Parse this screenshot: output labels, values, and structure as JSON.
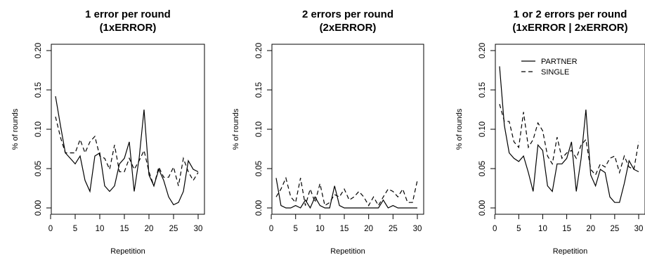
{
  "chart_data": [
    {
      "type": "line",
      "title": "1 error per round",
      "subtitle": "(1xERROR)",
      "xlabel": "Repetition",
      "ylabel": "% of rounds",
      "xlim": [
        1,
        30
      ],
      "ylim": [
        0,
        0.2
      ],
      "xticks": [
        "0",
        "5",
        "10",
        "15",
        "20",
        "25",
        "30"
      ],
      "yticks": [
        "0.00",
        "0.05",
        "0.10",
        "0.15",
        "0.20"
      ],
      "legend": null,
      "x": [
        1,
        2,
        3,
        4,
        5,
        6,
        7,
        8,
        9,
        10,
        11,
        12,
        13,
        14,
        15,
        16,
        17,
        18,
        19,
        20,
        21,
        22,
        23,
        24,
        25,
        26,
        27,
        28,
        29,
        30
      ],
      "series": [
        {
          "style": "solid",
          "values": [
            0.142,
            0.105,
            0.07,
            0.063,
            0.056,
            0.066,
            0.035,
            0.021,
            0.066,
            0.07,
            0.028,
            0.021,
            0.028,
            0.056,
            0.063,
            0.084,
            0.021,
            0.063,
            0.125,
            0.042,
            0.028,
            0.049,
            0.035,
            0.014,
            0.004,
            0.007,
            0.021,
            0.06,
            0.049,
            0.046
          ]
        },
        {
          "style": "dashed",
          "values": [
            0.116,
            0.09,
            0.07,
            0.07,
            0.07,
            0.087,
            0.07,
            0.084,
            0.091,
            0.066,
            0.063,
            0.049,
            0.08,
            0.046,
            0.046,
            0.063,
            0.049,
            0.06,
            0.073,
            0.046,
            0.028,
            0.052,
            0.039,
            0.039,
            0.052,
            0.028,
            0.063,
            0.046,
            0.035,
            0.045
          ]
        }
      ]
    },
    {
      "type": "line",
      "title": "2 errors per round",
      "subtitle": "(2xERROR)",
      "xlabel": "Repetition",
      "ylabel": "% of rounds",
      "xlim": [
        1,
        30
      ],
      "ylim": [
        0,
        0.2
      ],
      "xticks": [
        "0",
        "5",
        "10",
        "15",
        "20",
        "25",
        "30"
      ],
      "yticks": [
        "0.00",
        "0.05",
        "0.10",
        "0.15",
        "0.20"
      ],
      "legend": null,
      "x": [
        1,
        2,
        3,
        4,
        5,
        6,
        7,
        8,
        9,
        10,
        11,
        12,
        13,
        14,
        15,
        16,
        17,
        18,
        19,
        20,
        21,
        22,
        23,
        24,
        25,
        26,
        27,
        28,
        29,
        30
      ],
      "series": [
        {
          "style": "solid",
          "values": [
            0.038,
            0.003,
            0.0,
            0.0,
            0.003,
            0.0,
            0.01,
            0.0,
            0.014,
            0.003,
            0.0,
            0.0,
            0.028,
            0.003,
            0.0,
            0.0,
            0.0,
            0.0,
            0.0,
            0.0,
            0.0,
            0.0,
            0.01,
            0.0,
            0.003,
            0.0,
            0.0,
            0.0,
            0.0,
            0.0
          ]
        },
        {
          "style": "dashed",
          "values": [
            0.014,
            0.024,
            0.038,
            0.014,
            0.007,
            0.038,
            0.003,
            0.024,
            0.007,
            0.031,
            0.003,
            0.007,
            0.017,
            0.014,
            0.024,
            0.01,
            0.014,
            0.021,
            0.014,
            0.003,
            0.014,
            0.003,
            0.014,
            0.024,
            0.021,
            0.014,
            0.024,
            0.007,
            0.007,
            0.035
          ]
        }
      ]
    },
    {
      "type": "line",
      "title": "1 or 2 errors per round",
      "subtitle": "(1xERROR | 2xERROR)",
      "xlabel": "Repetition",
      "ylabel": "% of rounds",
      "xlim": [
        1,
        30
      ],
      "ylim": [
        0,
        0.2
      ],
      "xticks": [
        "0",
        "5",
        "10",
        "15",
        "20",
        "25",
        "30"
      ],
      "yticks": [
        "0.00",
        "0.05",
        "0.10",
        "0.15",
        "0.20"
      ],
      "legend": {
        "position": "top-right",
        "entries": [
          "PARTNER",
          "SINGLE"
        ]
      },
      "x": [
        1,
        2,
        3,
        4,
        5,
        6,
        7,
        8,
        9,
        10,
        11,
        12,
        13,
        14,
        15,
        16,
        17,
        18,
        19,
        20,
        21,
        22,
        23,
        24,
        25,
        26,
        27,
        28,
        29,
        30
      ],
      "series": [
        {
          "name": "PARTNER",
          "style": "solid",
          "values": [
            0.18,
            0.105,
            0.07,
            0.063,
            0.059,
            0.066,
            0.045,
            0.021,
            0.08,
            0.073,
            0.028,
            0.021,
            0.056,
            0.056,
            0.063,
            0.084,
            0.021,
            0.063,
            0.125,
            0.042,
            0.028,
            0.049,
            0.045,
            0.014,
            0.007,
            0.007,
            0.031,
            0.06,
            0.049,
            0.046
          ]
        },
        {
          "name": "SINGLE",
          "style": "dashed",
          "values": [
            0.132,
            0.11,
            0.11,
            0.084,
            0.077,
            0.122,
            0.077,
            0.087,
            0.108,
            0.098,
            0.066,
            0.056,
            0.09,
            0.063,
            0.07,
            0.073,
            0.063,
            0.08,
            0.087,
            0.049,
            0.042,
            0.056,
            0.052,
            0.063,
            0.066,
            0.045,
            0.066,
            0.052,
            0.049,
            0.084
          ]
        }
      ]
    }
  ]
}
